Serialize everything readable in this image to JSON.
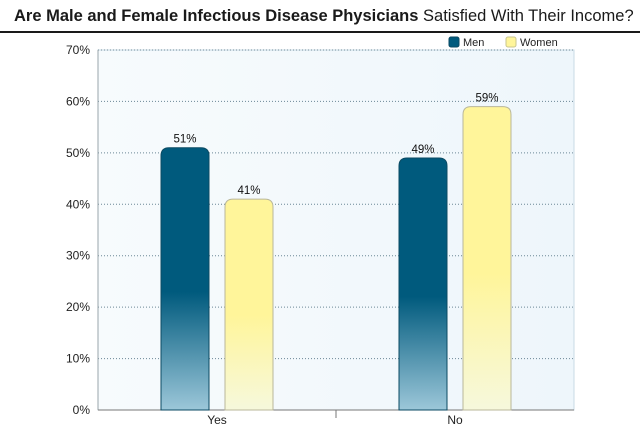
{
  "title": {
    "bold_part": "Are Male and Female Infectious Disease Physicians",
    "normal_part": "Satisfied With Their Income?"
  },
  "chart_data": {
    "type": "bar",
    "title": "Are Male and Female Infectious Disease Physicians Satisfied With Their Income?",
    "categories": [
      "Yes",
      "No"
    ],
    "series": [
      {
        "name": "Men",
        "values": [
          51,
          49
        ],
        "labels": [
          "51%",
          "49%"
        ],
        "color": "#005a7d",
        "fade_color": "#9cc7d9"
      },
      {
        "name": "Women",
        "values": [
          41,
          59
        ],
        "labels": [
          "41%",
          "59%"
        ],
        "color": "#fff59a",
        "fade_color": "#f6f8dc"
      }
    ],
    "ylim": [
      0,
      70
    ],
    "yticks": [
      0,
      10,
      20,
      30,
      40,
      50,
      60,
      70
    ],
    "ytick_labels": [
      "0%",
      "10%",
      "20%",
      "30%",
      "40%",
      "50%",
      "60%",
      "70%"
    ],
    "xlabel": "",
    "ylabel": "",
    "grid": true,
    "legend_position": "top-right",
    "plot_background": "#eef6fb"
  }
}
